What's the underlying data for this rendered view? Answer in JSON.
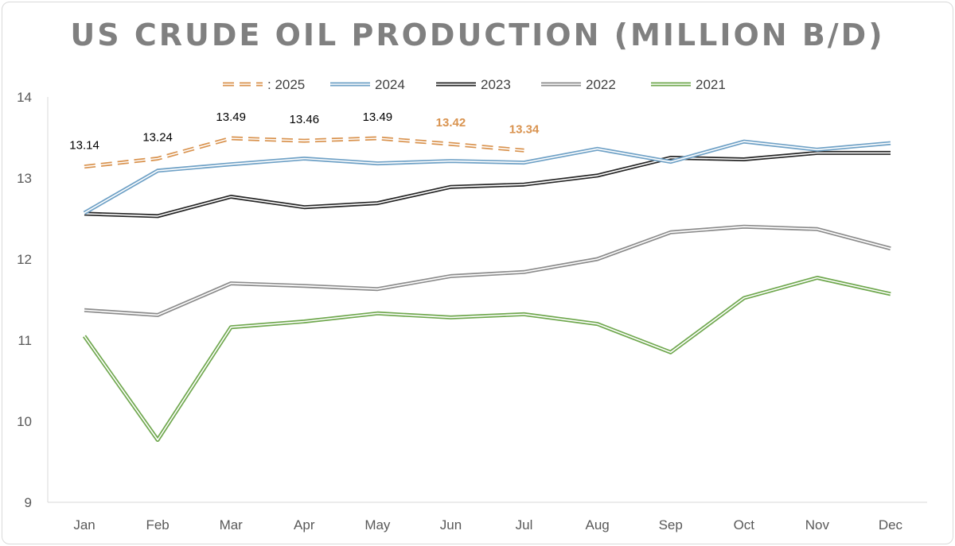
{
  "chart_data": {
    "type": "line",
    "title": "US CRUDE OIL PRODUCTION (MILLION B/D)",
    "xlabel": "",
    "ylabel": "",
    "categories": [
      "Jan",
      "Feb",
      "Mar",
      "Apr",
      "May",
      "Jun",
      "Jul",
      "Aug",
      "Sep",
      "Oct",
      "Nov",
      "Dec"
    ],
    "ylim": [
      9,
      14
    ],
    "yticks": [
      "9",
      "10",
      "11",
      "12",
      "13",
      "14"
    ],
    "grid": false,
    "legend_position": "top",
    "series": [
      {
        "name": "2025",
        "legend_label": ": 2025",
        "color": "#D9934F",
        "style": "dashed",
        "values": [
          13.14,
          13.24,
          13.49,
          13.46,
          13.49,
          13.42,
          13.34,
          null,
          null,
          null,
          null,
          null
        ],
        "data_labels": [
          "13.14",
          "13.24",
          "13.49",
          "13.46",
          "13.49",
          "13.42",
          "13.34"
        ],
        "data_label_colors": [
          "#000000",
          "#000000",
          "#000000",
          "#000000",
          "#000000",
          "#D9934F",
          "#D9934F"
        ]
      },
      {
        "name": "2024",
        "legend_label": "2024",
        "color": "#6FA1C6",
        "style": "double",
        "values": [
          12.57,
          13.09,
          13.17,
          13.24,
          13.18,
          13.21,
          13.19,
          13.36,
          13.2,
          13.45,
          13.35,
          13.43
        ]
      },
      {
        "name": "2023",
        "legend_label": "2023",
        "color": "#262626",
        "style": "double",
        "values": [
          12.56,
          12.53,
          12.77,
          12.64,
          12.69,
          12.89,
          12.92,
          13.03,
          13.25,
          13.23,
          13.31,
          13.31
        ]
      },
      {
        "name": "2022",
        "legend_label": "2022",
        "color": "#8C8C8C",
        "style": "double",
        "values": [
          11.37,
          11.31,
          11.7,
          11.67,
          11.63,
          11.79,
          11.84,
          12.0,
          12.33,
          12.4,
          12.37,
          12.13
        ]
      },
      {
        "name": "2021",
        "legend_label": "2021",
        "color": "#70A84F",
        "style": "double",
        "values": [
          11.05,
          9.77,
          11.16,
          11.23,
          11.33,
          11.28,
          11.32,
          11.2,
          10.85,
          11.52,
          11.77,
          11.57
        ]
      }
    ]
  }
}
